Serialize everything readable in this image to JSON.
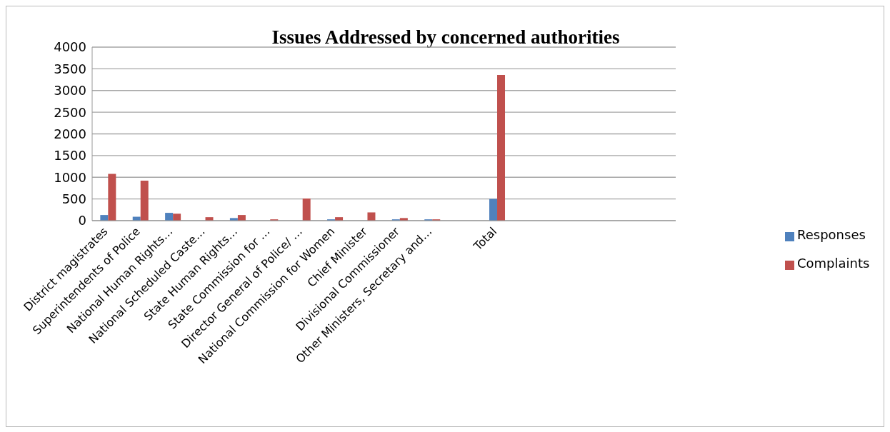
{
  "chart_data": {
    "type": "bar",
    "title": "Issues Addressed by concerned authorities",
    "categories": [
      "District magistrates",
      "Superintendents of Police",
      "National Human Rights…",
      "National Scheduled Caste…",
      "State Human Rights…",
      "State Commission for …",
      "Director General  of Police/ …",
      "National Commission for Women",
      "Chief Minister",
      "Divisional Commissioner",
      "Other Ministers, Secretary and…",
      null,
      "Total",
      null,
      null,
      null,
      null,
      null
    ],
    "series": [
      {
        "name": "Responses",
        "color": "#4f81bd",
        "values": [
          130,
          90,
          180,
          0,
          60,
          0,
          0,
          30,
          0,
          30,
          30,
          null,
          500,
          null,
          null,
          null,
          null,
          null
        ]
      },
      {
        "name": "Complaints",
        "color": "#c0504d",
        "values": [
          1080,
          920,
          160,
          80,
          130,
          30,
          510,
          80,
          190,
          60,
          30,
          null,
          3360,
          null,
          null,
          null,
          null,
          null
        ]
      }
    ],
    "ylim": [
      0,
      4000
    ],
    "yticks": [
      0,
      500,
      1000,
      1500,
      2000,
      2500,
      3000,
      3500,
      4000
    ],
    "grid": "y",
    "legend": "right"
  }
}
